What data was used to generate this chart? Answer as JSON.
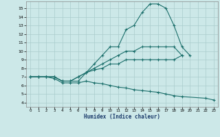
{
  "xlabel": "Humidex (Indice chaleur)",
  "background_color": "#cce8e8",
  "grid_color": "#aacccc",
  "line_color": "#1a6e6a",
  "xlim": [
    -0.5,
    23.5
  ],
  "ylim": [
    3.5,
    15.8
  ],
  "yticks": [
    4,
    5,
    6,
    7,
    8,
    9,
    10,
    11,
    12,
    13,
    14,
    15
  ],
  "xticks": [
    0,
    1,
    2,
    3,
    4,
    5,
    6,
    7,
    8,
    9,
    10,
    11,
    12,
    13,
    14,
    15,
    16,
    17,
    18,
    19,
    20,
    21,
    22,
    23
  ],
  "series": [
    {
      "x": [
        0,
        1,
        2,
        3,
        4,
        5,
        6,
        7,
        8,
        9,
        10,
        11,
        12,
        13,
        14,
        15,
        16,
        17,
        18,
        19,
        20
      ],
      "y": [
        7,
        7,
        7,
        7,
        6.5,
        6.5,
        6.5,
        7.5,
        8.5,
        9.5,
        10.5,
        10.5,
        12.5,
        13.0,
        14.5,
        15.5,
        15.5,
        15.0,
        13.0,
        10.5,
        9.5
      ]
    },
    {
      "x": [
        0,
        1,
        2,
        3,
        4,
        5,
        6,
        7,
        8,
        9,
        10,
        11,
        12,
        13,
        14,
        15,
        16,
        17,
        18,
        19
      ],
      "y": [
        7,
        7,
        7,
        7,
        6.5,
        6.5,
        7.0,
        7.5,
        8.0,
        8.5,
        9.0,
        9.5,
        10.0,
        10.0,
        10.5,
        10.5,
        10.5,
        10.5,
        10.5,
        9.5
      ]
    },
    {
      "x": [
        0,
        1,
        2,
        3,
        4,
        5,
        6,
        7,
        8,
        9,
        10,
        11,
        12,
        13,
        14,
        15,
        16,
        17,
        18,
        19
      ],
      "y": [
        7,
        7,
        7,
        7,
        6.5,
        6.5,
        7.0,
        7.5,
        7.8,
        8.0,
        8.5,
        8.5,
        9.0,
        9.0,
        9.0,
        9.0,
        9.0,
        9.0,
        9.0,
        9.5
      ]
    },
    {
      "x": [
        0,
        1,
        2,
        3,
        4,
        5,
        6,
        7,
        8,
        9,
        10,
        11,
        12,
        13,
        14,
        15,
        16,
        17,
        18,
        19,
        22,
        23
      ],
      "y": [
        7,
        7,
        7,
        6.8,
        6.3,
        6.3,
        6.3,
        6.5,
        6.3,
        6.2,
        6.0,
        5.8,
        5.7,
        5.5,
        5.4,
        5.3,
        5.2,
        5.0,
        4.8,
        4.7,
        4.5,
        4.3
      ]
    }
  ]
}
